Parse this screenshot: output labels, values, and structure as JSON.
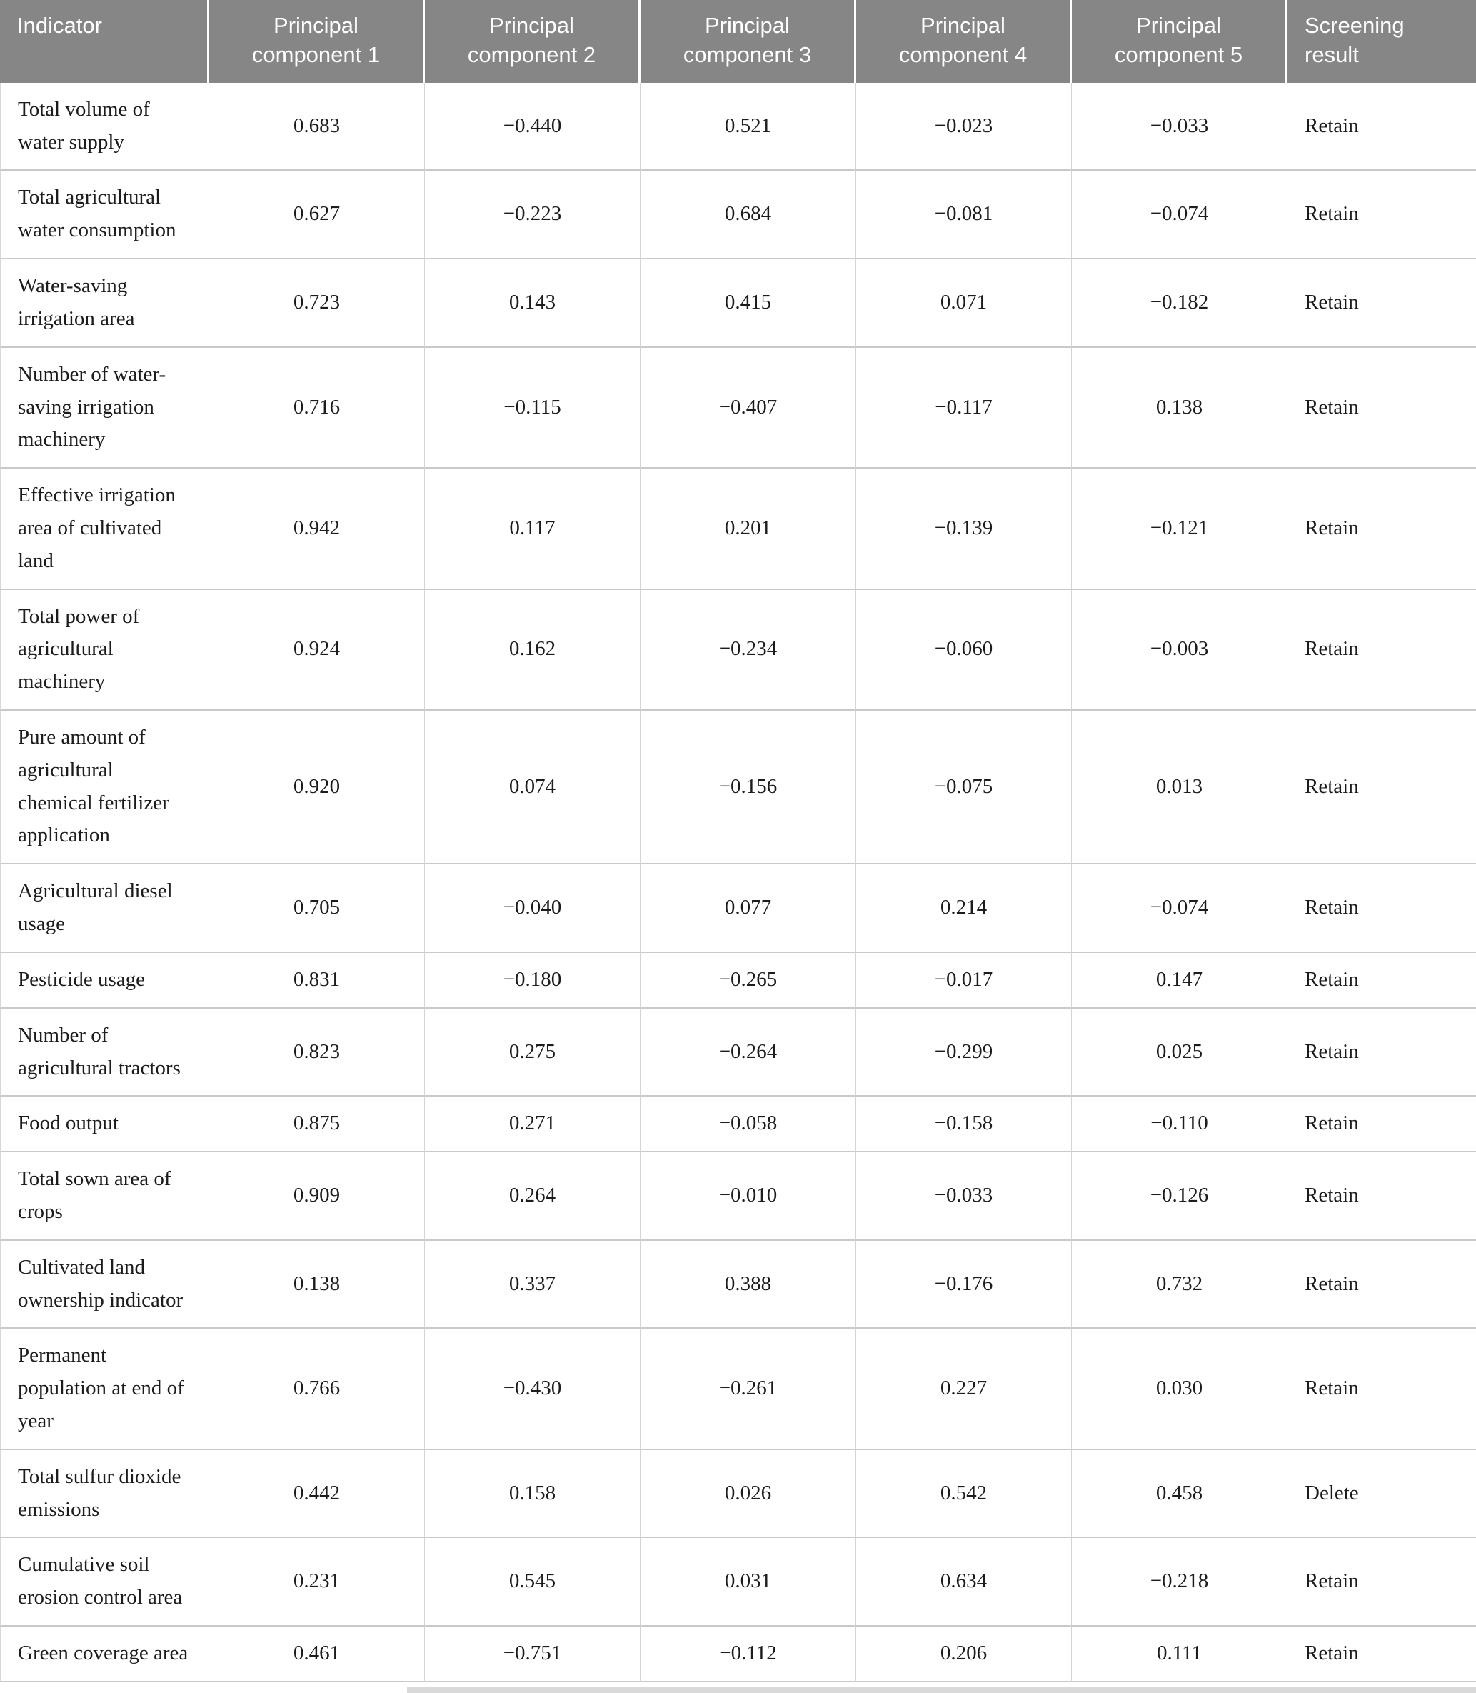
{
  "table": {
    "columns": [
      "Indicator",
      "Principal component 1",
      "Principal component 2",
      "Principal component 3",
      "Principal component 4",
      "Principal component 5",
      "Screening result"
    ],
    "rows": [
      {
        "indicator": "Total volume of water supply",
        "values": [
          "0.683",
          "−0.440",
          "0.521",
          "−0.023",
          "−0.033"
        ],
        "result": "Retain"
      },
      {
        "indicator": "Total agricultural water consumption",
        "values": [
          "0.627",
          "−0.223",
          "0.684",
          "−0.081",
          "−0.074"
        ],
        "result": "Retain"
      },
      {
        "indicator": "Water-saving irrigation area",
        "values": [
          "0.723",
          "0.143",
          "0.415",
          "0.071",
          "−0.182"
        ],
        "result": "Retain"
      },
      {
        "indicator": "Number of water-saving irrigation machinery",
        "values": [
          "0.716",
          "−0.115",
          "−0.407",
          "−0.117",
          "0.138"
        ],
        "result": "Retain"
      },
      {
        "indicator": "Effective irrigation area of cultivated land",
        "values": [
          "0.942",
          "0.117",
          "0.201",
          "−0.139",
          "−0.121"
        ],
        "result": "Retain"
      },
      {
        "indicator": "Total power of agricultural machinery",
        "values": [
          "0.924",
          "0.162",
          "−0.234",
          "−0.060",
          "−0.003"
        ],
        "result": "Retain"
      },
      {
        "indicator": "Pure amount of agricultural chemical fertilizer application",
        "values": [
          "0.920",
          "0.074",
          "−0.156",
          "−0.075",
          "0.013"
        ],
        "result": "Retain"
      },
      {
        "indicator": "Agricultural diesel usage",
        "values": [
          "0.705",
          "−0.040",
          "0.077",
          "0.214",
          "−0.074"
        ],
        "result": "Retain"
      },
      {
        "indicator": "Pesticide usage",
        "values": [
          "0.831",
          "−0.180",
          "−0.265",
          "−0.017",
          "0.147"
        ],
        "result": "Retain"
      },
      {
        "indicator": "Number of agricultural tractors",
        "values": [
          "0.823",
          "0.275",
          "−0.264",
          "−0.299",
          "0.025"
        ],
        "result": "Retain"
      },
      {
        "indicator": "Food output",
        "values": [
          "0.875",
          "0.271",
          "−0.058",
          "−0.158",
          "−0.110"
        ],
        "result": "Retain"
      },
      {
        "indicator": "Total sown area of crops",
        "values": [
          "0.909",
          "0.264",
          "−0.010",
          "−0.033",
          "−0.126"
        ],
        "result": "Retain"
      },
      {
        "indicator": "Cultivated land ownership indicator",
        "values": [
          "0.138",
          "0.337",
          "0.388",
          "−0.176",
          "0.732"
        ],
        "result": "Retain"
      },
      {
        "indicator": "Permanent population at end of year",
        "values": [
          "0.766",
          "−0.430",
          "−0.261",
          "0.227",
          "0.030"
        ],
        "result": "Retain"
      },
      {
        "indicator": "Total sulfur dioxide emissions",
        "values": [
          "0.442",
          "0.158",
          "0.026",
          "0.542",
          "0.458"
        ],
        "result": "Delete"
      },
      {
        "indicator": "Cumulative soil erosion control area",
        "values": [
          "0.231",
          "0.545",
          "0.031",
          "0.634",
          "−0.218"
        ],
        "result": "Retain"
      },
      {
        "indicator": "Green coverage area",
        "values": [
          "0.461",
          "−0.751",
          "−0.112",
          "0.206",
          "0.111"
        ],
        "result": "Retain"
      }
    ]
  },
  "colors": {
    "header_background": "#868686",
    "header_text": "#ffffff",
    "body_text": "#1c1c1c",
    "grid_line": "#c9c9c9"
  }
}
